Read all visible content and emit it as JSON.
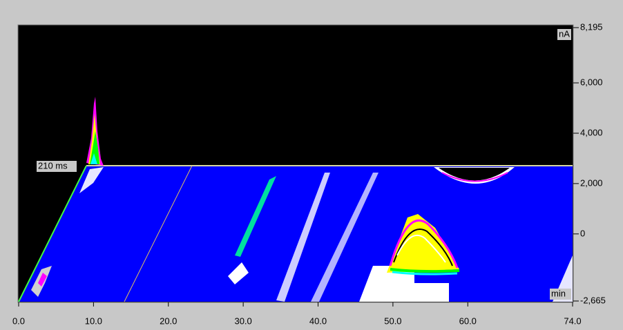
{
  "chart_data": {
    "type": "surface",
    "x_unit": "min",
    "y_unit": "nA",
    "annotation": "210 ms",
    "xlim": [
      0,
      74
    ],
    "ylim": [
      -2665,
      8195
    ],
    "xticks": [
      {
        "value": 0,
        "label": "0.0"
      },
      {
        "value": 10,
        "label": "10.0"
      },
      {
        "value": 20,
        "label": "20.0"
      },
      {
        "value": 30,
        "label": "30.0"
      },
      {
        "value": 40,
        "label": "40.0"
      },
      {
        "value": 50,
        "label": "50.0"
      },
      {
        "value": 60,
        "label": "60.0"
      },
      {
        "value": 74,
        "label": "74.0"
      }
    ],
    "yticks": [
      {
        "value": -2665,
        "label": "-2,665"
      },
      0,
      {
        "value": 2000,
        "label": "2,000"
      },
      {
        "value": 4000,
        "label": "4,000"
      },
      {
        "value": 6000,
        "label": "6,000"
      },
      {
        "value": 8195,
        "label": "8,195"
      }
    ]
  }
}
